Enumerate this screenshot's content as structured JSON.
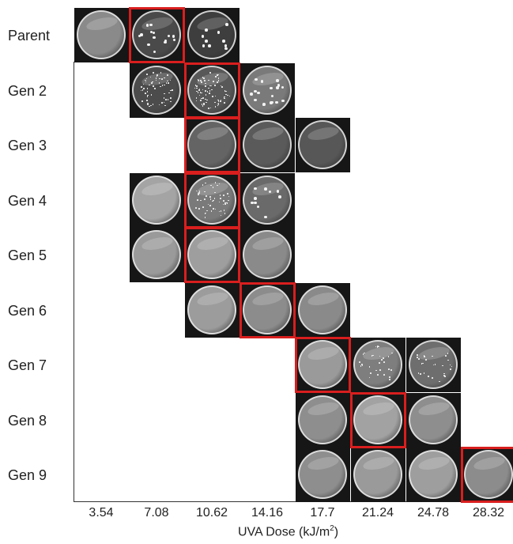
{
  "rows": [
    {
      "label": "Parent",
      "start": 0,
      "count": 3,
      "selected": 1,
      "shades": [
        "#8a8a8a",
        "#4a4a4a",
        "#3e3e3e"
      ],
      "colonies": [
        0,
        14,
        10
      ]
    },
    {
      "label": "Gen 2",
      "start": 1,
      "count": 3,
      "selected": 2,
      "shades": [
        "#4c4c4c",
        "#585858",
        "#7a7a7a"
      ],
      "colonies": [
        60,
        80,
        18
      ]
    },
    {
      "label": "Gen 3",
      "start": 2,
      "count": 3,
      "selected": 2,
      "shades": [
        "#646464",
        "#5a5a5a",
        "#575757"
      ],
      "colonies": [
        0,
        0,
        0
      ]
    },
    {
      "label": "Gen 4",
      "start": 1,
      "count": 3,
      "selected": 2,
      "shades": [
        "#a4a4a4",
        "#7a7a7a",
        "#6a6a6a"
      ],
      "colonies": [
        0,
        55,
        10
      ]
    },
    {
      "label": "Gen 5",
      "start": 1,
      "count": 3,
      "selected": 2,
      "shades": [
        "#9a9a9a",
        "#9e9e9e",
        "#8a8a8a"
      ],
      "colonies": [
        0,
        0,
        0
      ]
    },
    {
      "label": "Gen 6",
      "start": 2,
      "count": 3,
      "selected": 3,
      "shades": [
        "#9c9c9c",
        "#8c8c8c",
        "#8a8a8a"
      ],
      "colonies": [
        0,
        0,
        0
      ]
    },
    {
      "label": "Gen 7",
      "start": 4,
      "count": 3,
      "selected": 4,
      "shades": [
        "#9a9a9a",
        "#7e7e7e",
        "#6e6e6e"
      ],
      "colonies": [
        0,
        30,
        28
      ]
    },
    {
      "label": "Gen 8",
      "start": 4,
      "count": 3,
      "selected": 5,
      "shades": [
        "#8e8e8e",
        "#a2a2a2",
        "#8e8e8e"
      ],
      "colonies": [
        0,
        0,
        0
      ]
    },
    {
      "label": "Gen 9",
      "start": 4,
      "count": 4,
      "selected": 7,
      "shades": [
        "#8e8e8e",
        "#9a9a9a",
        "#9e9e9e",
        "#8c8c8c"
      ],
      "colonies": [
        0,
        0,
        0,
        0
      ]
    }
  ],
  "doses": [
    "3.54",
    "7.08",
    "10.62",
    "14.16",
    "17.7",
    "21.24",
    "24.78",
    "28.32"
  ],
  "x_axis": {
    "title": "UVA Dose (kJ/m",
    "title_sup": "2",
    "title_end": ")"
  },
  "colors": {
    "selected_border": "#d91e1e",
    "background": "#ffffff",
    "cell_background": "#161616"
  }
}
